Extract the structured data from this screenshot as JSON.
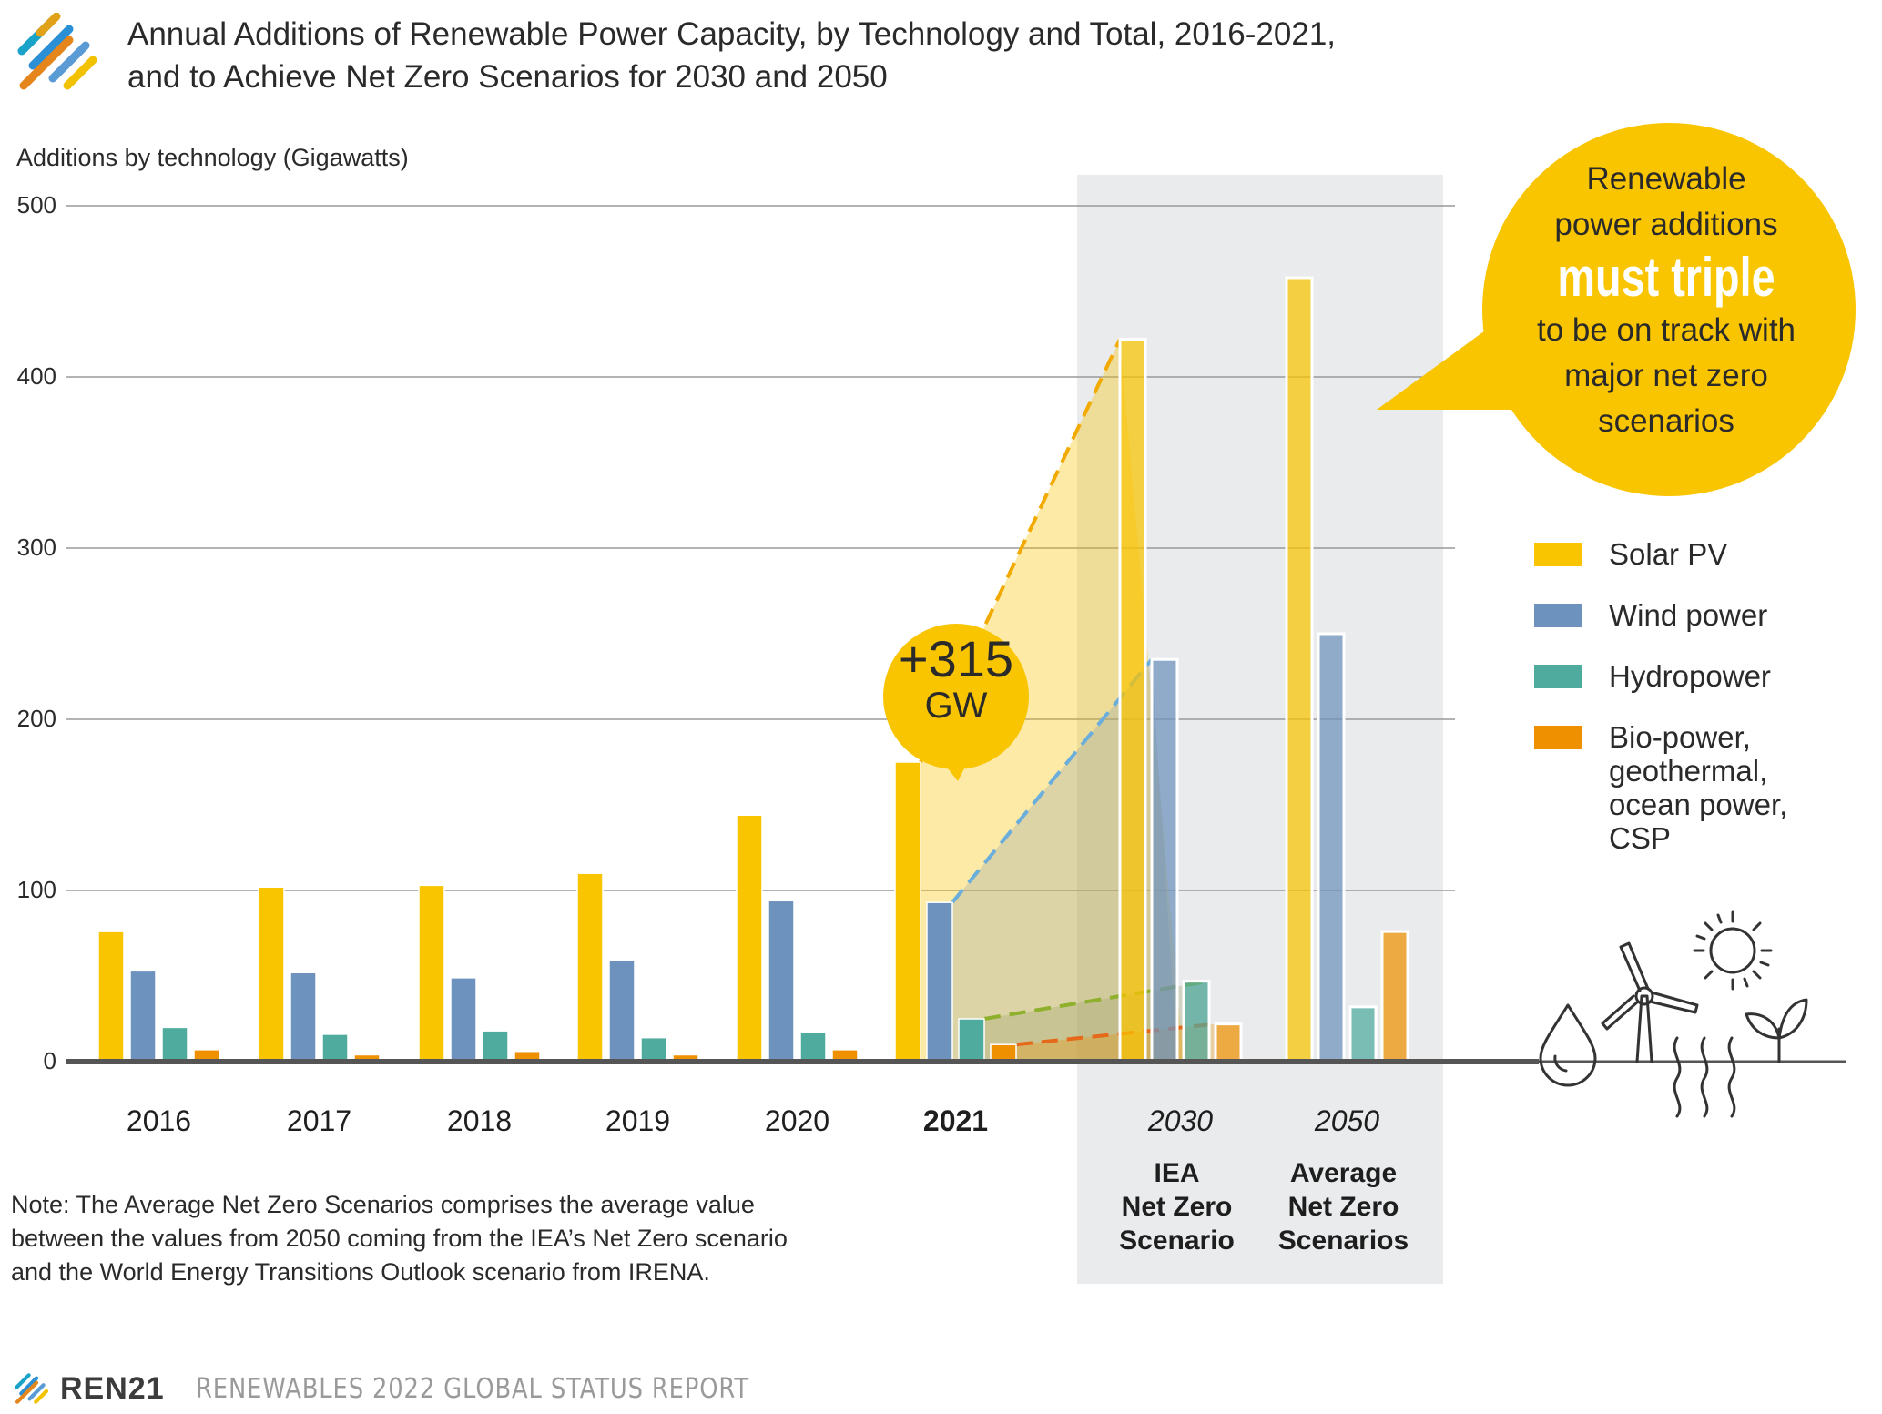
{
  "header": {
    "title_line1": "Annual Additions of Renewable Power Capacity, by Technology and Total, 2016-2021,",
    "title_line2": "and to Achieve Net Zero Scenarios for 2030 and 2050"
  },
  "chart_data": {
    "type": "bar",
    "ylabel": "Additions by technology (Gigawatts)",
    "ylim": [
      0,
      500
    ],
    "yticks": [
      0,
      100,
      200,
      300,
      400,
      500
    ],
    "grid": true,
    "legend_position": "right",
    "categories": [
      "2016",
      "2017",
      "2018",
      "2019",
      "2020",
      "2021",
      "2030",
      "2050"
    ],
    "category_subtitles": [
      "",
      "",
      "",
      "",
      "",
      "",
      "IEA\nNet Zero\nScenario",
      "Average\nNet Zero\nScenarios"
    ],
    "series": [
      {
        "name": "Solar PV",
        "color": "#F9C400",
        "values": [
          76,
          102,
          103,
          110,
          144,
          175,
          422,
          458
        ]
      },
      {
        "name": "Wind power",
        "color": "#6D92BD",
        "values": [
          53,
          52,
          49,
          59,
          94,
          93,
          235,
          250
        ]
      },
      {
        "name": "Hydropower",
        "color": "#4FAB9E",
        "values": [
          20,
          16,
          18,
          14,
          17,
          25,
          47,
          32
        ]
      },
      {
        "name": "Bio-power,\ngeothermal,\nocean power,\nCSP",
        "color": "#EE9000",
        "values": [
          7,
          4,
          6,
          4,
          7,
          10,
          22,
          76
        ]
      }
    ],
    "annotation_2021_increase": {
      "value": "+315",
      "unit": "GW"
    },
    "callout": {
      "line1": "Renewable",
      "line2": "power additions",
      "emphasis": "must triple",
      "line3": "to be on track with",
      "line4": "major net zero",
      "line5": "scenarios"
    }
  },
  "note": {
    "line1": "Note: The Average Net Zero Scenarios comprises the average value",
    "line2": "between the values from 2050 coming from the IEA’s Net Zero scenario",
    "line3": "and the World Energy Transitions Outlook scenario from IRENA."
  },
  "footer": {
    "brand": "REN21",
    "report": "RENEWABLES 2022 GLOBAL STATUS REPORT"
  },
  "icons": [
    "ren21-logo-icon",
    "water-drop-icon",
    "wind-turbine-icon",
    "sun-icon",
    "heat-waves-icon",
    "leaf-icon"
  ]
}
